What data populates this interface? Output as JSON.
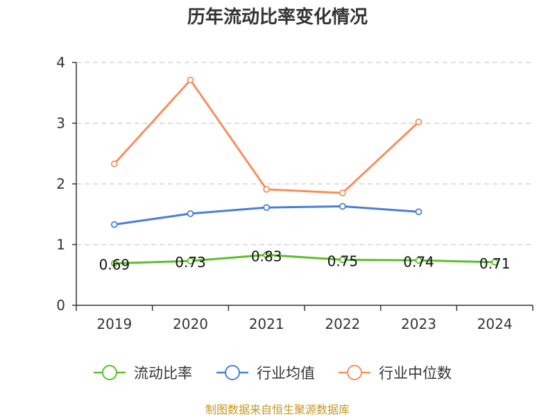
{
  "chart_data": {
    "type": "line",
    "title": "历年流动比率变化情况",
    "categories": [
      "2019",
      "2020",
      "2021",
      "2022",
      "2023",
      "2024"
    ],
    "ylim": [
      0,
      4
    ],
    "yticks": [
      "0",
      "1",
      "2",
      "3",
      "4"
    ],
    "grid": true,
    "legend_position": "bottom",
    "series": [
      {
        "name": "流动比率",
        "color": "#5bbf2a",
        "values": [
          0.69,
          0.73,
          0.83,
          0.75,
          0.74,
          0.71
        ],
        "labels": [
          "0.69",
          "0.73",
          "0.83",
          "0.75",
          "0.74",
          "0.71"
        ]
      },
      {
        "name": "行业均值",
        "color": "#4a7fd6",
        "values": [
          1.33,
          1.51,
          1.61,
          1.63,
          1.54,
          null
        ]
      },
      {
        "name": "行业中位数",
        "color": "#f78f5c",
        "values": [
          2.33,
          3.71,
          1.91,
          1.85,
          3.02,
          null
        ]
      }
    ],
    "source": "制图数据来自恒生聚源数据库"
  }
}
